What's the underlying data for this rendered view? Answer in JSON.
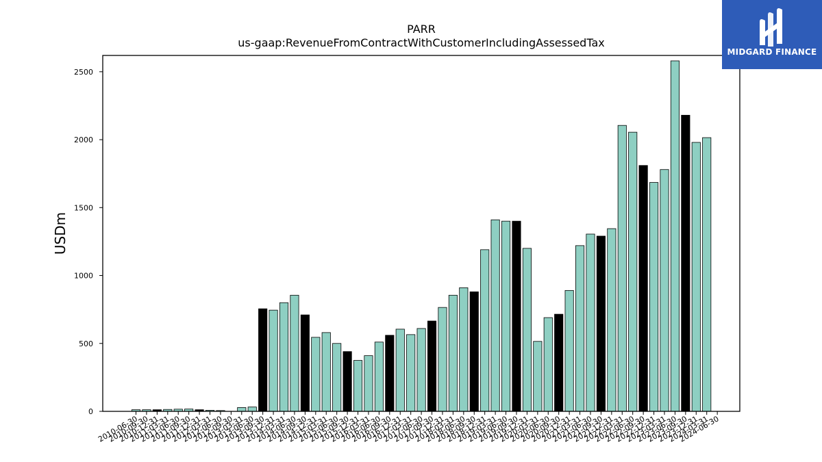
{
  "brand": {
    "name": "MIDGARD FINANCE",
    "bg_color": "#2e5cb8",
    "icon": "midgard-logo-icon"
  },
  "chart_data": {
    "type": "bar",
    "title": "PARR",
    "subtitle": "us-gaap:RevenueFromContractWithCustomerIncludingAssessedTax",
    "xlabel": "",
    "ylabel": "USDm",
    "ylim": [
      0,
      2620
    ],
    "yticks": [
      0,
      500,
      1000,
      1500,
      2000,
      2500
    ],
    "grid": false,
    "legend": "none",
    "colors": {
      "quarter": "#8ecfc2",
      "annual": "#000000",
      "edge": "#000000"
    },
    "categories": [
      "2010-06-30",
      "2010-09-30",
      "2010-12-31",
      "2011-03-31",
      "2011-06-30",
      "2011-09-30",
      "2011-12-31",
      "2012-03-31",
      "2012-06-30",
      "2012-09-30",
      "2013-03-31",
      "2013-06-30",
      "2013-09-30",
      "2013-12-31",
      "2014-03-31",
      "2014-06-30",
      "2014-09-30",
      "2014-12-31",
      "2015-03-31",
      "2015-06-30",
      "2015-09-30",
      "2015-12-31",
      "2016-03-31",
      "2016-06-30",
      "2016-09-30",
      "2016-12-31",
      "2017-03-31",
      "2017-06-30",
      "2017-09-30",
      "2017-12-31",
      "2018-03-31",
      "2018-06-30",
      "2018-09-30",
      "2018-12-31",
      "2019-03-31",
      "2019-06-30",
      "2019-09-30",
      "2019-12-31",
      "2020-03-31",
      "2020-06-30",
      "2020-09-30",
      "2020-12-31",
      "2021-03-31",
      "2021-06-30",
      "2021-09-30",
      "2021-12-31",
      "2022-03-31",
      "2022-06-30",
      "2022-09-30",
      "2022-12-31",
      "2023-03-31",
      "2023-06-30",
      "2023-09-30",
      "2023-12-31",
      "2024-03-31",
      "2024-06-30"
    ],
    "values": [
      12,
      12,
      12,
      14,
      16,
      17,
      12,
      8,
      6,
      0,
      28,
      32,
      755,
      745,
      800,
      855,
      710,
      545,
      580,
      500,
      440,
      375,
      410,
      510,
      560,
      605,
      565,
      610,
      665,
      765,
      855,
      910,
      880,
      1190,
      1410,
      1400,
      1400,
      1200,
      515,
      690,
      715,
      890,
      1220,
      1305,
      1290,
      1345,
      2105,
      2055,
      1810,
      1685,
      1780,
      2580,
      2180,
      1980,
      2015,
      0
    ],
    "annual_flags": [
      0,
      0,
      1,
      0,
      0,
      0,
      1,
      0,
      0,
      0,
      0,
      0,
      1,
      0,
      0,
      0,
      1,
      0,
      0,
      0,
      1,
      0,
      0,
      0,
      1,
      0,
      0,
      0,
      1,
      0,
      0,
      0,
      1,
      0,
      0,
      0,
      1,
      0,
      0,
      0,
      1,
      0,
      0,
      0,
      1,
      0,
      0,
      0,
      1,
      0,
      0,
      0,
      1,
      0,
      0,
      0
    ]
  }
}
